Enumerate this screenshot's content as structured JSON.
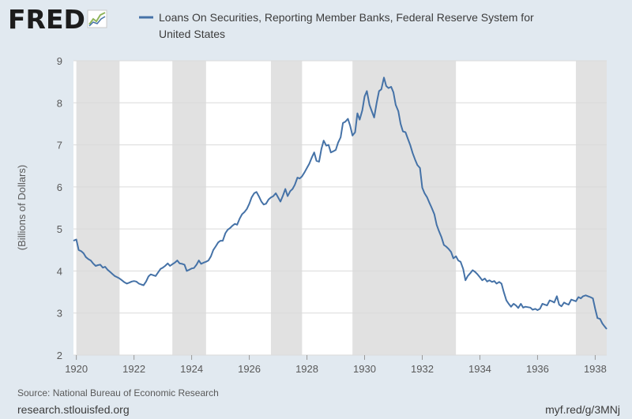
{
  "brand": {
    "logo_text": "FRED",
    "logo_icon": "trend-chart-icon"
  },
  "chart_data": {
    "type": "line",
    "title": "",
    "ylabel": "(Billions of Dollars)",
    "xlabel": "",
    "xlim": [
      1919.9,
      1938.4
    ],
    "ylim": [
      2,
      9
    ],
    "x_ticks": [
      1920,
      1922,
      1924,
      1926,
      1928,
      1930,
      1932,
      1934,
      1936,
      1938
    ],
    "y_ticks": [
      2,
      3,
      4,
      5,
      6,
      7,
      8,
      9
    ],
    "grid": true,
    "legend_position": "top",
    "series_color": "#4572a7",
    "recession_color": "#e1e1e1",
    "recessions": [
      [
        1920.0,
        1921.5
      ],
      [
        1923.33,
        1924.5
      ],
      [
        1926.75,
        1927.83
      ],
      [
        1929.58,
        1933.17
      ],
      [
        1937.33,
        1938.4
      ]
    ],
    "series": [
      {
        "name": "Loans On Securities, Reporting Member Banks, Federal Reserve System for United States",
        "points": [
          [
            1919.9,
            4.72
          ],
          [
            1920.0,
            4.75
          ],
          [
            1920.08,
            4.5
          ],
          [
            1920.17,
            4.47
          ],
          [
            1920.25,
            4.42
          ],
          [
            1920.33,
            4.33
          ],
          [
            1920.42,
            4.28
          ],
          [
            1920.5,
            4.25
          ],
          [
            1920.58,
            4.18
          ],
          [
            1920.67,
            4.12
          ],
          [
            1920.75,
            4.14
          ],
          [
            1920.83,
            4.15
          ],
          [
            1920.92,
            4.08
          ],
          [
            1921.0,
            4.1
          ],
          [
            1921.08,
            4.03
          ],
          [
            1921.17,
            3.98
          ],
          [
            1921.25,
            3.93
          ],
          [
            1921.33,
            3.88
          ],
          [
            1921.42,
            3.85
          ],
          [
            1921.5,
            3.82
          ],
          [
            1921.58,
            3.78
          ],
          [
            1921.67,
            3.73
          ],
          [
            1921.75,
            3.7
          ],
          [
            1921.83,
            3.72
          ],
          [
            1921.92,
            3.75
          ],
          [
            1922.0,
            3.76
          ],
          [
            1922.08,
            3.75
          ],
          [
            1922.17,
            3.7
          ],
          [
            1922.25,
            3.68
          ],
          [
            1922.33,
            3.66
          ],
          [
            1922.42,
            3.75
          ],
          [
            1922.5,
            3.87
          ],
          [
            1922.58,
            3.92
          ],
          [
            1922.67,
            3.9
          ],
          [
            1922.75,
            3.88
          ],
          [
            1922.83,
            3.96
          ],
          [
            1922.92,
            4.05
          ],
          [
            1923.0,
            4.08
          ],
          [
            1923.08,
            4.12
          ],
          [
            1923.17,
            4.18
          ],
          [
            1923.25,
            4.12
          ],
          [
            1923.33,
            4.16
          ],
          [
            1923.42,
            4.2
          ],
          [
            1923.5,
            4.25
          ],
          [
            1923.58,
            4.18
          ],
          [
            1923.67,
            4.17
          ],
          [
            1923.75,
            4.15
          ],
          [
            1923.83,
            4.0
          ],
          [
            1923.92,
            4.03
          ],
          [
            1924.0,
            4.06
          ],
          [
            1924.08,
            4.07
          ],
          [
            1924.17,
            4.15
          ],
          [
            1924.25,
            4.25
          ],
          [
            1924.33,
            4.17
          ],
          [
            1924.42,
            4.2
          ],
          [
            1924.5,
            4.22
          ],
          [
            1924.58,
            4.25
          ],
          [
            1924.67,
            4.35
          ],
          [
            1924.75,
            4.5
          ],
          [
            1924.83,
            4.58
          ],
          [
            1924.92,
            4.68
          ],
          [
            1925.0,
            4.72
          ],
          [
            1925.08,
            4.72
          ],
          [
            1925.17,
            4.9
          ],
          [
            1925.25,
            4.98
          ],
          [
            1925.33,
            5.02
          ],
          [
            1925.42,
            5.08
          ],
          [
            1925.5,
            5.12
          ],
          [
            1925.58,
            5.1
          ],
          [
            1925.67,
            5.25
          ],
          [
            1925.75,
            5.35
          ],
          [
            1925.83,
            5.4
          ],
          [
            1925.92,
            5.48
          ],
          [
            1926.0,
            5.6
          ],
          [
            1926.08,
            5.75
          ],
          [
            1926.17,
            5.85
          ],
          [
            1926.25,
            5.88
          ],
          [
            1926.33,
            5.78
          ],
          [
            1926.42,
            5.65
          ],
          [
            1926.5,
            5.58
          ],
          [
            1926.58,
            5.6
          ],
          [
            1926.67,
            5.7
          ],
          [
            1926.75,
            5.75
          ],
          [
            1926.83,
            5.78
          ],
          [
            1926.92,
            5.85
          ],
          [
            1927.0,
            5.75
          ],
          [
            1927.08,
            5.65
          ],
          [
            1927.17,
            5.8
          ],
          [
            1927.25,
            5.95
          ],
          [
            1927.33,
            5.78
          ],
          [
            1927.42,
            5.9
          ],
          [
            1927.5,
            5.95
          ],
          [
            1927.58,
            6.05
          ],
          [
            1927.67,
            6.22
          ],
          [
            1927.75,
            6.2
          ],
          [
            1927.83,
            6.25
          ],
          [
            1927.92,
            6.35
          ],
          [
            1928.0,
            6.45
          ],
          [
            1928.08,
            6.55
          ],
          [
            1928.17,
            6.7
          ],
          [
            1928.25,
            6.82
          ],
          [
            1928.33,
            6.62
          ],
          [
            1928.42,
            6.6
          ],
          [
            1928.5,
            6.9
          ],
          [
            1928.58,
            7.1
          ],
          [
            1928.67,
            6.98
          ],
          [
            1928.75,
            7.0
          ],
          [
            1928.83,
            6.82
          ],
          [
            1928.92,
            6.85
          ],
          [
            1929.0,
            6.88
          ],
          [
            1929.08,
            7.05
          ],
          [
            1929.17,
            7.18
          ],
          [
            1929.25,
            7.52
          ],
          [
            1929.33,
            7.55
          ],
          [
            1929.42,
            7.62
          ],
          [
            1929.5,
            7.45
          ],
          [
            1929.58,
            7.22
          ],
          [
            1929.67,
            7.3
          ],
          [
            1929.75,
            7.75
          ],
          [
            1929.83,
            7.6
          ],
          [
            1929.92,
            7.82
          ],
          [
            1930.0,
            8.15
          ],
          [
            1930.08,
            8.28
          ],
          [
            1930.17,
            7.95
          ],
          [
            1930.25,
            7.8
          ],
          [
            1930.33,
            7.65
          ],
          [
            1930.42,
            8.0
          ],
          [
            1930.5,
            8.28
          ],
          [
            1930.58,
            8.32
          ],
          [
            1930.67,
            8.6
          ],
          [
            1930.75,
            8.4
          ],
          [
            1930.83,
            8.35
          ],
          [
            1930.92,
            8.38
          ],
          [
            1931.0,
            8.25
          ],
          [
            1931.08,
            7.95
          ],
          [
            1931.17,
            7.8
          ],
          [
            1931.25,
            7.5
          ],
          [
            1931.33,
            7.32
          ],
          [
            1931.42,
            7.3
          ],
          [
            1931.5,
            7.15
          ],
          [
            1931.58,
            7.0
          ],
          [
            1931.67,
            6.8
          ],
          [
            1931.75,
            6.65
          ],
          [
            1931.83,
            6.52
          ],
          [
            1931.92,
            6.45
          ],
          [
            1932.0,
            5.98
          ],
          [
            1932.08,
            5.85
          ],
          [
            1932.17,
            5.75
          ],
          [
            1932.25,
            5.62
          ],
          [
            1932.33,
            5.5
          ],
          [
            1932.42,
            5.35
          ],
          [
            1932.5,
            5.1
          ],
          [
            1932.58,
            4.95
          ],
          [
            1932.67,
            4.8
          ],
          [
            1932.75,
            4.62
          ],
          [
            1932.83,
            4.58
          ],
          [
            1932.92,
            4.52
          ],
          [
            1933.0,
            4.45
          ],
          [
            1933.08,
            4.3
          ],
          [
            1933.17,
            4.35
          ],
          [
            1933.25,
            4.25
          ],
          [
            1933.33,
            4.22
          ],
          [
            1933.42,
            4.05
          ],
          [
            1933.5,
            3.78
          ],
          [
            1933.58,
            3.88
          ],
          [
            1933.67,
            3.95
          ],
          [
            1933.75,
            4.02
          ],
          [
            1933.83,
            3.98
          ],
          [
            1933.92,
            3.92
          ],
          [
            1934.0,
            3.85
          ],
          [
            1934.08,
            3.78
          ],
          [
            1934.17,
            3.82
          ],
          [
            1934.25,
            3.75
          ],
          [
            1934.33,
            3.78
          ],
          [
            1934.42,
            3.74
          ],
          [
            1934.5,
            3.76
          ],
          [
            1934.58,
            3.7
          ],
          [
            1934.67,
            3.74
          ],
          [
            1934.75,
            3.7
          ],
          [
            1934.83,
            3.5
          ],
          [
            1934.92,
            3.3
          ],
          [
            1935.0,
            3.22
          ],
          [
            1935.08,
            3.15
          ],
          [
            1935.17,
            3.22
          ],
          [
            1935.25,
            3.18
          ],
          [
            1935.33,
            3.12
          ],
          [
            1935.42,
            3.22
          ],
          [
            1935.5,
            3.13
          ],
          [
            1935.58,
            3.15
          ],
          [
            1935.67,
            3.14
          ],
          [
            1935.75,
            3.13
          ],
          [
            1935.83,
            3.08
          ],
          [
            1935.92,
            3.1
          ],
          [
            1936.0,
            3.07
          ],
          [
            1936.08,
            3.1
          ],
          [
            1936.17,
            3.22
          ],
          [
            1936.25,
            3.2
          ],
          [
            1936.33,
            3.18
          ],
          [
            1936.42,
            3.3
          ],
          [
            1936.5,
            3.28
          ],
          [
            1936.58,
            3.25
          ],
          [
            1936.67,
            3.4
          ],
          [
            1936.75,
            3.2
          ],
          [
            1936.83,
            3.16
          ],
          [
            1936.92,
            3.25
          ],
          [
            1937.0,
            3.22
          ],
          [
            1937.08,
            3.2
          ],
          [
            1937.17,
            3.32
          ],
          [
            1937.25,
            3.3
          ],
          [
            1937.33,
            3.28
          ],
          [
            1937.42,
            3.38
          ],
          [
            1937.5,
            3.35
          ],
          [
            1937.58,
            3.4
          ],
          [
            1937.67,
            3.42
          ],
          [
            1937.75,
            3.4
          ],
          [
            1937.83,
            3.38
          ],
          [
            1937.92,
            3.35
          ],
          [
            1938.0,
            3.1
          ],
          [
            1938.08,
            2.88
          ],
          [
            1938.17,
            2.86
          ],
          [
            1938.25,
            2.75
          ],
          [
            1938.33,
            2.68
          ],
          [
            1938.4,
            2.62
          ]
        ]
      }
    ]
  },
  "tail_points": [
    [
      1938.42,
      2.48
    ],
    [
      1938.46,
      2.46
    ],
    [
      1938.5,
      2.52
    ]
  ],
  "footer": {
    "source": "Source: National Bureau of Economic Research",
    "site": "research.stlouisfed.org",
    "short_link": "myf.red/g/3MNj"
  }
}
